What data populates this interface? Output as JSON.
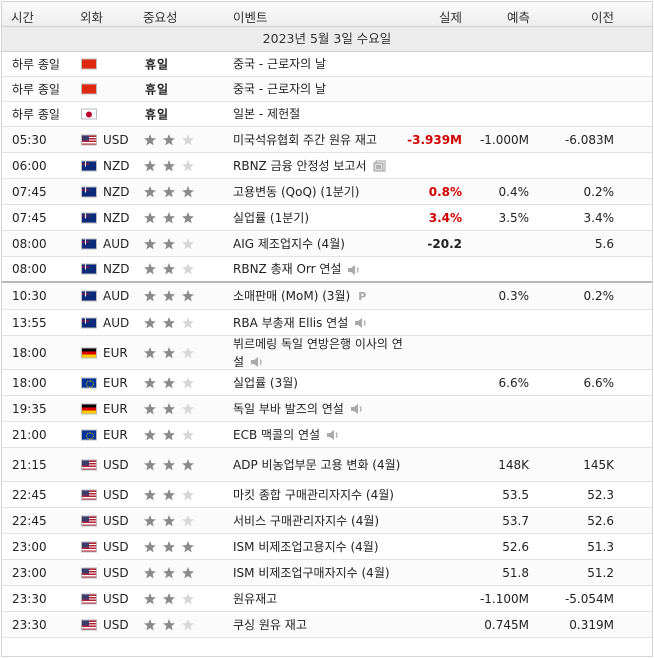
{
  "header": {
    "time": "시간",
    "currency": "외화",
    "importance": "중요성",
    "event": "이벤트",
    "actual": "실제",
    "forecast": "예측",
    "previous": "이전"
  },
  "date_label": "2023년 5월 3일 수요일",
  "colors": {
    "negative": "#d10000",
    "star_on": "#8a8a8a",
    "star_off": "#d7d7d7"
  },
  "rows": [
    {
      "time": "하루 종일",
      "flag": "cn",
      "currency": "",
      "importance_text": "휴일",
      "stars": 0,
      "event": "중국 - 근로자의 날",
      "actual": "",
      "forecast": "",
      "previous": ""
    },
    {
      "time": "하루 종일",
      "flag": "cn",
      "currency": "",
      "importance_text": "휴일",
      "stars": 0,
      "event": "중국 - 근로자의 날",
      "actual": "",
      "forecast": "",
      "previous": ""
    },
    {
      "time": "하루 종일",
      "flag": "jp",
      "currency": "",
      "importance_text": "휴일",
      "stars": 0,
      "event": "일본 - 제헌절",
      "actual": "",
      "forecast": "",
      "previous": ""
    },
    {
      "time": "05:30",
      "flag": "us",
      "currency": "USD",
      "importance_text": "",
      "stars": 2,
      "event": "미국석유협회 주간 원유 재고",
      "actual": "-3.939M",
      "actual_red": true,
      "forecast": "-1.000M",
      "previous": "-6.083M"
    },
    {
      "time": "06:00",
      "flag": "nz",
      "currency": "NZD",
      "importance_text": "",
      "stars": 2,
      "event": "RBNZ 금융 안정성 보고서",
      "icon": "document-icon",
      "actual": "",
      "forecast": "",
      "previous": ""
    },
    {
      "time": "07:45",
      "flag": "nz",
      "currency": "NZD",
      "importance_text": "",
      "stars": 3,
      "event": "고용변동 (QoQ) (1분기)",
      "actual": "0.8%",
      "actual_red": true,
      "forecast": "0.4%",
      "previous": "0.2%"
    },
    {
      "time": "07:45",
      "flag": "nz",
      "currency": "NZD",
      "importance_text": "",
      "stars": 3,
      "event": "실업률 (1분기)",
      "actual": "3.4%",
      "actual_red": true,
      "forecast": "3.5%",
      "previous": "3.4%"
    },
    {
      "time": "08:00",
      "flag": "au",
      "currency": "AUD",
      "importance_text": "",
      "stars": 2,
      "event": "AIG 제조업지수 (4월)",
      "actual": "-20.2",
      "actual_red": false,
      "forecast": "",
      "previous": "5.6"
    },
    {
      "time": "08:00",
      "flag": "nz",
      "currency": "NZD",
      "importance_text": "",
      "stars": 2,
      "event": "RBNZ 총재 Orr 연설",
      "icon": "speaker-icon",
      "actual": "",
      "forecast": "",
      "previous": ""
    },
    {
      "time": "10:30",
      "flag": "au",
      "currency": "AUD",
      "importance_text": "",
      "stars": 3,
      "event": "소매판매 (MoM) (3월)",
      "icon": "preliminary-icon",
      "actual": "",
      "forecast": "0.3%",
      "previous": "0.2%"
    },
    {
      "time": "13:55",
      "flag": "au",
      "currency": "AUD",
      "importance_text": "",
      "stars": 2,
      "event": "RBA 부총재 Ellis 연설",
      "icon": "speaker-icon",
      "actual": "",
      "forecast": "",
      "previous": ""
    },
    {
      "time": "18:00",
      "flag": "de",
      "currency": "EUR",
      "importance_text": "",
      "stars": 2,
      "event": "뷔르메링 독일 연방은행 이사의 연설",
      "icon": "speaker-icon",
      "actual": "",
      "forecast": "",
      "previous": ""
    },
    {
      "time": "18:00",
      "flag": "eu",
      "currency": "EUR",
      "importance_text": "",
      "stars": 2,
      "event": "실업률 (3월)",
      "actual": "",
      "forecast": "6.6%",
      "previous": "6.6%"
    },
    {
      "time": "19:35",
      "flag": "de",
      "currency": "EUR",
      "importance_text": "",
      "stars": 2,
      "event": "독일 부바 발즈의 연설",
      "icon": "speaker-icon",
      "actual": "",
      "forecast": "",
      "previous": ""
    },
    {
      "time": "21:00",
      "flag": "eu",
      "currency": "EUR",
      "importance_text": "",
      "stars": 2,
      "event": "ECB 맥콜의 연설",
      "icon": "speaker-icon",
      "actual": "",
      "forecast": "",
      "previous": ""
    },
    {
      "time": "21:15",
      "flag": "us",
      "currency": "USD",
      "importance_text": "",
      "stars": 3,
      "event": "ADP 비농업부문 고용 변화 (4월)",
      "actual": "",
      "forecast": "148K",
      "previous": "145K"
    },
    {
      "time": "22:45",
      "flag": "us",
      "currency": "USD",
      "importance_text": "",
      "stars": 2,
      "event": "마킷 종합 구매관리자지수 (4월)",
      "actual": "",
      "forecast": "53.5",
      "previous": "52.3"
    },
    {
      "time": "22:45",
      "flag": "us",
      "currency": "USD",
      "importance_text": "",
      "stars": 2,
      "event": "서비스 구매관리자지수 (4월)",
      "actual": "",
      "forecast": "53.7",
      "previous": "52.6"
    },
    {
      "time": "23:00",
      "flag": "us",
      "currency": "USD",
      "importance_text": "",
      "stars": 3,
      "event": "ISM 비제조업고용지수 (4월)",
      "actual": "",
      "forecast": "52.6",
      "previous": "51.3"
    },
    {
      "time": "23:00",
      "flag": "us",
      "currency": "USD",
      "importance_text": "",
      "stars": 3,
      "event": "ISM 비제조업구매자지수 (4월)",
      "actual": "",
      "forecast": "51.8",
      "previous": "51.2"
    },
    {
      "time": "23:30",
      "flag": "us",
      "currency": "USD",
      "importance_text": "",
      "stars": 2,
      "event": "원유재고",
      "actual": "",
      "forecast": "-1.100M",
      "previous": "-5.054M"
    },
    {
      "time": "23:30",
      "flag": "us",
      "currency": "USD",
      "importance_text": "",
      "stars": 2,
      "event": "쿠싱 원유 재고",
      "actual": "",
      "forecast": "0.745M",
      "previous": "0.319M"
    }
  ]
}
